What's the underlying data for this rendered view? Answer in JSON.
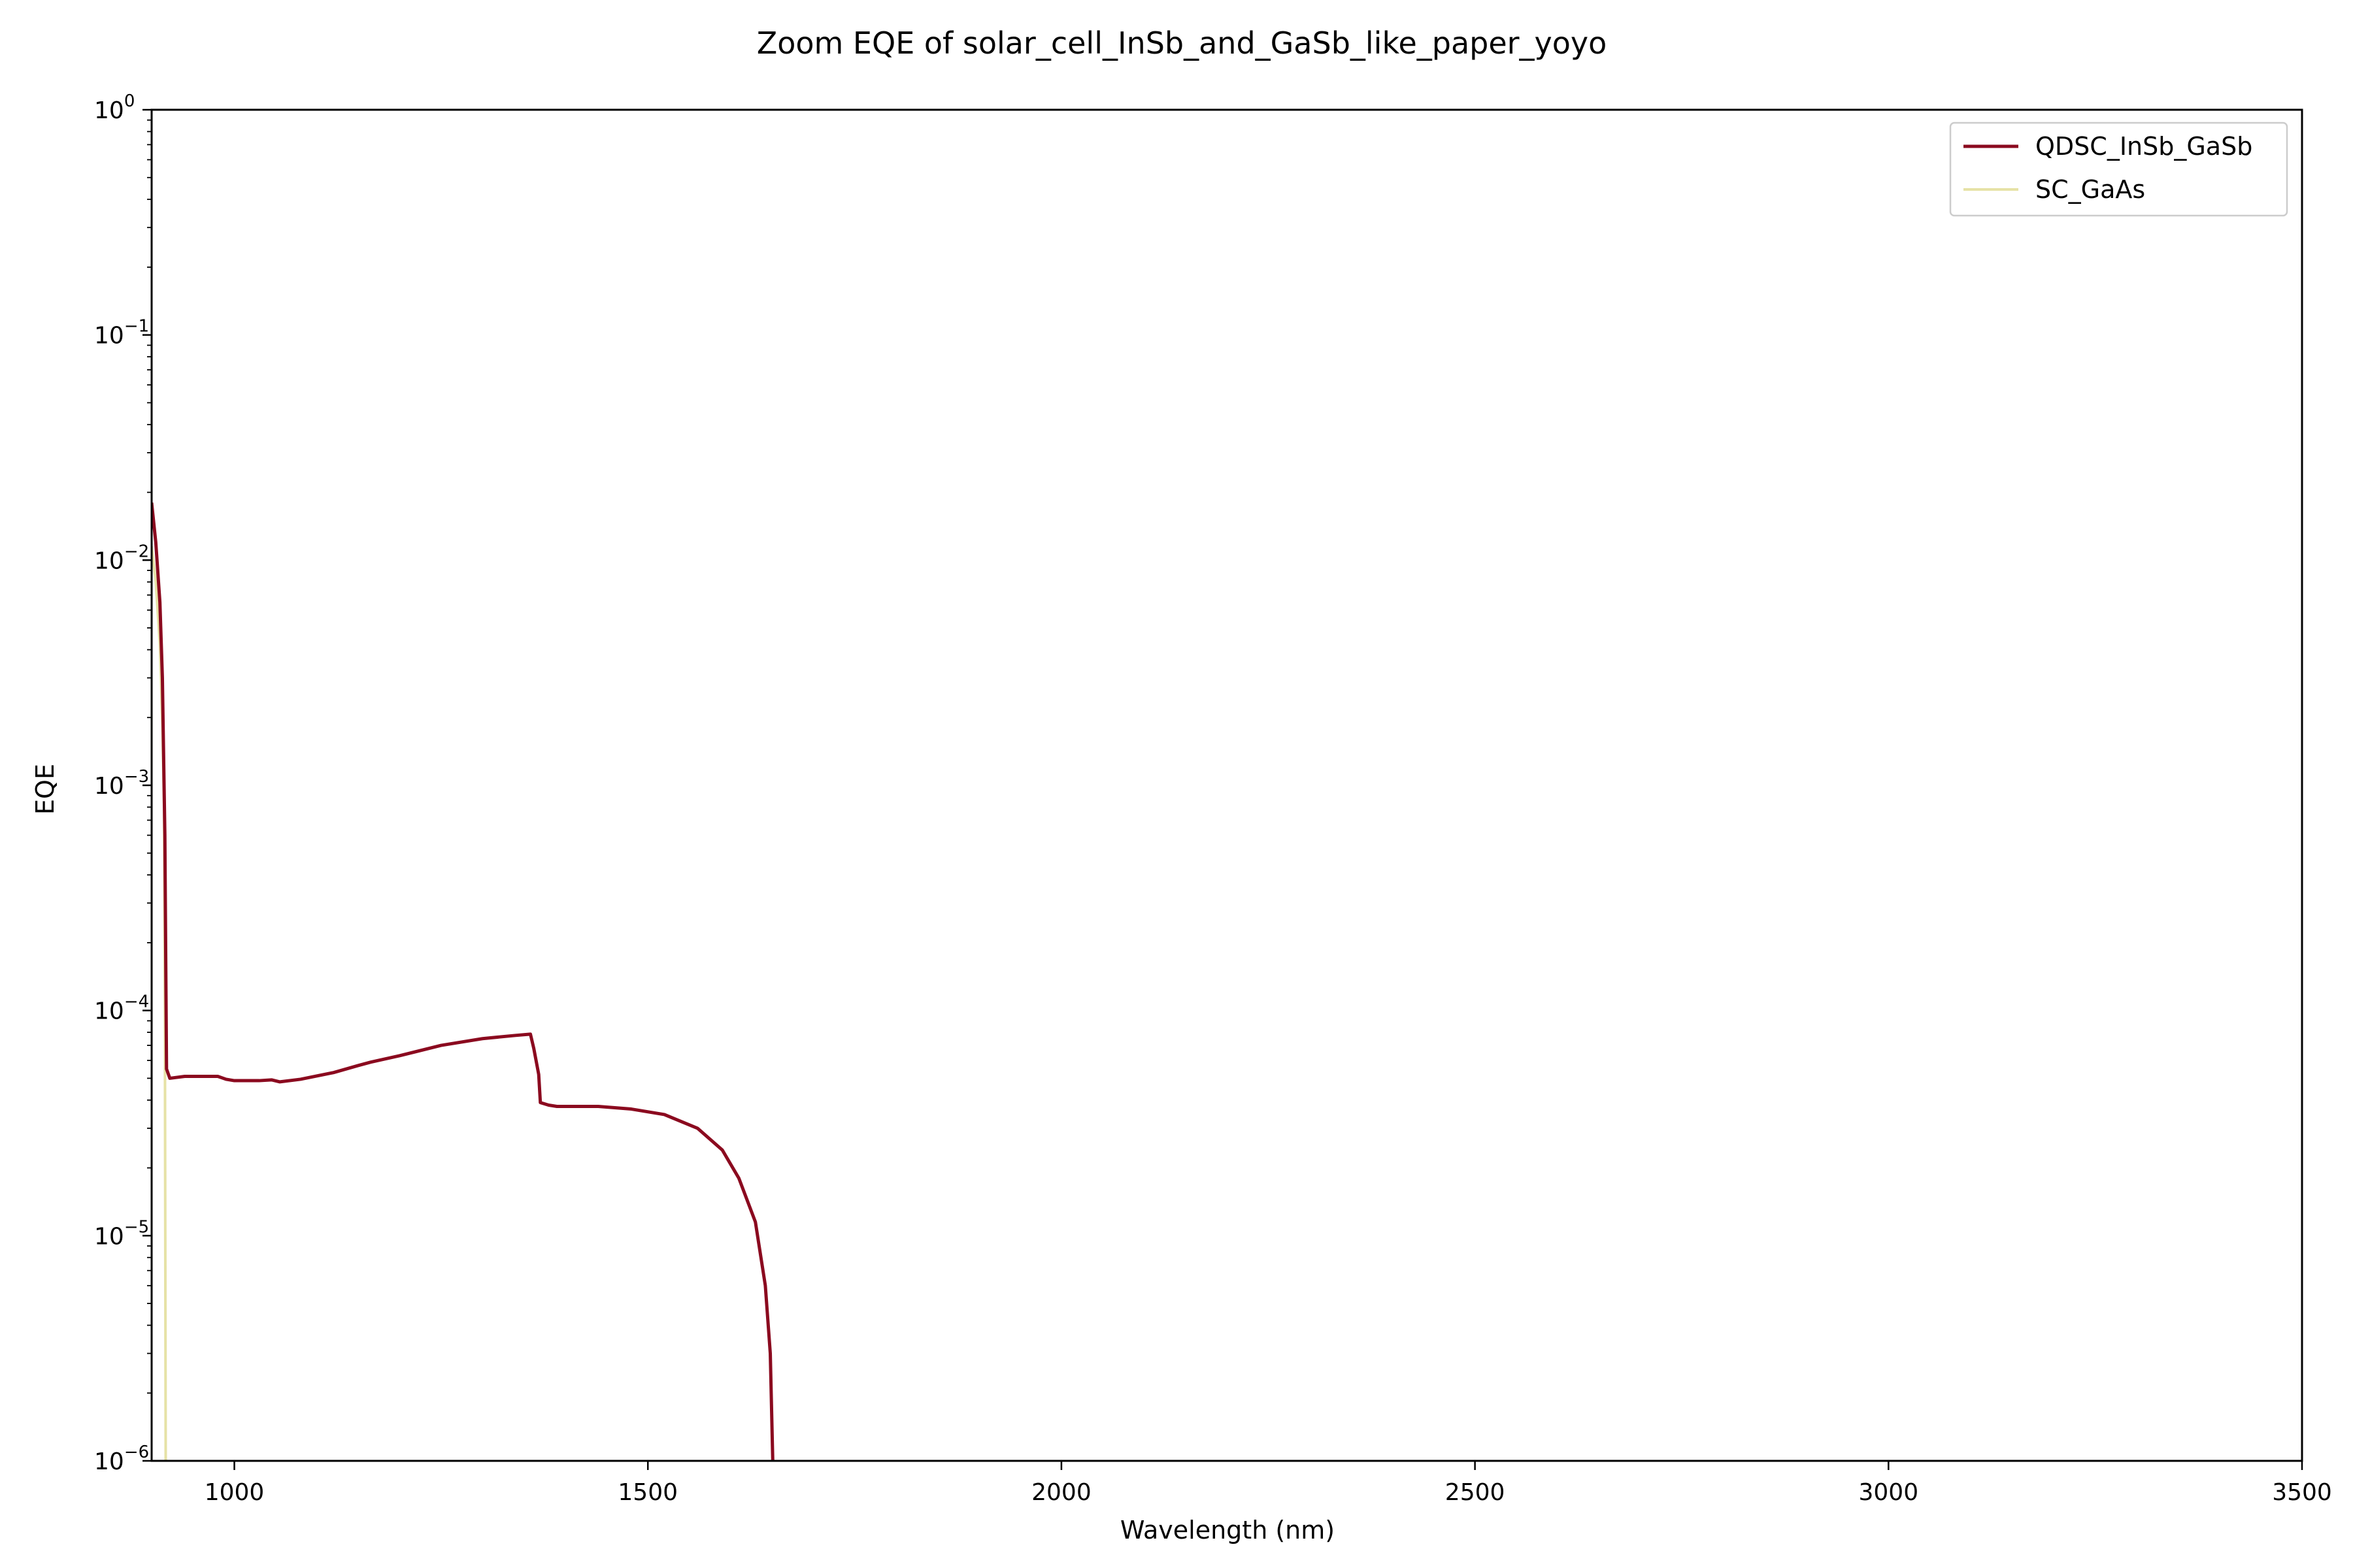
{
  "chart_data": {
    "type": "line",
    "title": "Zoom EQE of solar_cell_InSb_and_GaSb_like_paper_yoyo",
    "xlabel": "Wavelength (nm)",
    "ylabel": "EQE",
    "xlim": [
      900,
      3500
    ],
    "ylim": [
      1e-06,
      1
    ],
    "yscale": "log",
    "grid": false,
    "legend_position": "top-right",
    "x_ticks": [
      1000,
      1500,
      2000,
      2500,
      3000,
      3500
    ],
    "x_tick_labels": [
      "1000",
      "1500",
      "2000",
      "2500",
      "3000",
      "3500"
    ],
    "y_ticks": [
      {
        "value": 1,
        "base": "10",
        "exp": "0"
      },
      {
        "value": 0.1,
        "base": "10",
        "exp": "−1"
      },
      {
        "value": 0.01,
        "base": "10",
        "exp": "−2"
      },
      {
        "value": 0.001,
        "base": "10",
        "exp": "−3"
      },
      {
        "value": 0.0001,
        "base": "10",
        "exp": "−4"
      },
      {
        "value": 1e-05,
        "base": "10",
        "exp": "−5"
      },
      {
        "value": 1e-06,
        "base": "10",
        "exp": "−6"
      }
    ],
    "series": [
      {
        "name": "QDSC_InSb_GaSb",
        "color": "#8b0a1f",
        "points": [
          [
            900,
            0.018
          ],
          [
            905,
            0.012
          ],
          [
            910,
            0.0065
          ],
          [
            913,
            0.003
          ],
          [
            916,
            0.0006
          ],
          [
            918,
            5.5e-05
          ],
          [
            922,
            5e-05
          ],
          [
            940,
            5.1e-05
          ],
          [
            980,
            5.1e-05
          ],
          [
            990,
            4.95e-05
          ],
          [
            1000,
            4.88e-05
          ],
          [
            1030,
            4.88e-05
          ],
          [
            1045,
            4.92e-05
          ],
          [
            1055,
            4.82e-05
          ],
          [
            1080,
            4.95e-05
          ],
          [
            1120,
            5.3e-05
          ],
          [
            1150,
            5.7e-05
          ],
          [
            1165,
            5.9e-05
          ],
          [
            1200,
            6.3e-05
          ],
          [
            1250,
            7e-05
          ],
          [
            1300,
            7.5e-05
          ],
          [
            1340,
            7.75e-05
          ],
          [
            1358,
            7.85e-05
          ],
          [
            1362,
            6.8e-05
          ],
          [
            1368,
            5.2e-05
          ],
          [
            1370,
            3.9e-05
          ],
          [
            1380,
            3.8e-05
          ],
          [
            1390,
            3.75e-05
          ],
          [
            1440,
            3.75e-05
          ],
          [
            1480,
            3.65e-05
          ],
          [
            1520,
            3.45e-05
          ],
          [
            1560,
            3e-05
          ],
          [
            1590,
            2.4e-05
          ],
          [
            1610,
            1.8e-05
          ],
          [
            1630,
            1.15e-05
          ],
          [
            1642,
            6e-06
          ],
          [
            1648,
            3e-06
          ],
          [
            1651,
            1e-06
          ]
        ]
      },
      {
        "name": "SC_GaAs",
        "color": "#e6e2a6",
        "points": [
          [
            900,
            0.0115
          ],
          [
            905,
            0.008
          ],
          [
            910,
            0.0042
          ],
          [
            913,
            0.0018
          ],
          [
            915,
            0.0008
          ],
          [
            916,
            0.0001
          ],
          [
            917,
            1e-06
          ]
        ]
      }
    ]
  }
}
